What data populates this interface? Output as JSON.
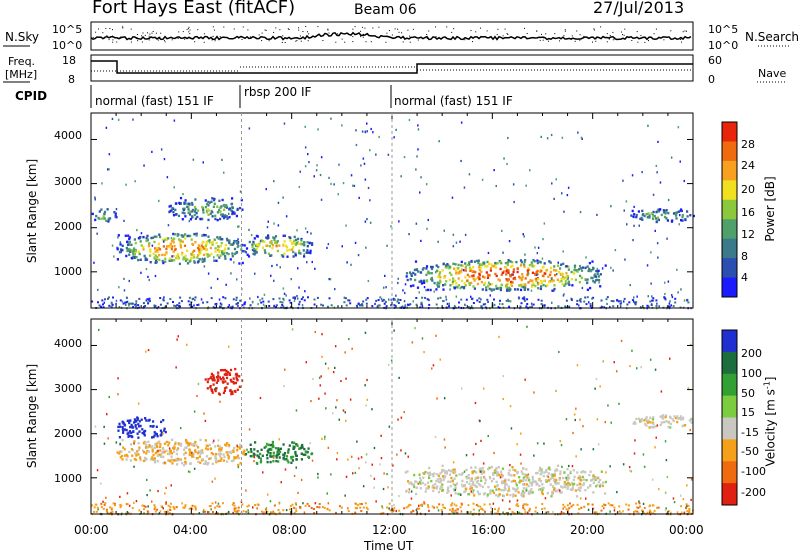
{
  "header": {
    "title": "Fort Hays East (fitACF)",
    "beam": "Beam 06",
    "date": "27/Jul/2013"
  },
  "top_panels": {
    "nsky_label": "N.Sky",
    "nsearch_label": "N.Search",
    "nsky_ticks": [
      "10^5",
      "10^0"
    ],
    "nsearch_ticks": [
      "10^5",
      "10^0"
    ],
    "freq_label_line1": "Freq.",
    "freq_label_line2": "[MHz]",
    "freq_ticks": [
      "18",
      "8"
    ],
    "nave_label": "Nave",
    "nave_ticks": [
      "60",
      "0"
    ],
    "cpid_label": "CPID",
    "cpid_segments": [
      {
        "label": "normal (fast) 151 IF",
        "start_h": 0,
        "end_h": 6
      },
      {
        "label": "rbsp 200 IF",
        "start_h": 6,
        "end_h": 12
      },
      {
        "label": "normal (fast) 151 IF",
        "start_h": 12,
        "end_h": 24
      }
    ]
  },
  "chart_data": [
    {
      "type": "heatmap",
      "name": "power",
      "ylabel": "Slant Range [km]",
      "yticks": [
        "1000",
        "2000",
        "3000",
        "4000"
      ],
      "ylim": [
        180,
        4600
      ],
      "xlim": [
        0,
        24
      ],
      "colorbar_label": "Power [dB]",
      "colorbar_ticks": [
        "28",
        "24",
        "20",
        "16",
        "12",
        "8",
        "4"
      ],
      "colors": [
        "#1b1bff",
        "#2b4fb0",
        "#3a7a8a",
        "#4fa06a",
        "#8cc83c",
        "#f0e020",
        "#f8a020",
        "#f06a10",
        "#e8240a"
      ],
      "regions": [
        {
          "x": [
            1.0,
            6.2
          ],
          "y": [
            1200,
            1900
          ],
          "level": 0.65
        },
        {
          "x": [
            6.1,
            8.8
          ],
          "y": [
            1350,
            1850
          ],
          "level": 0.6
        },
        {
          "x": [
            0.0,
            1.0
          ],
          "y": [
            2150,
            2450
          ],
          "level": 0.4
        },
        {
          "x": [
            3.0,
            6.0
          ],
          "y": [
            2200,
            2700
          ],
          "level": 0.35
        },
        {
          "x": [
            12.5,
            20.5
          ],
          "y": [
            600,
            1300
          ],
          "level": 0.75
        },
        {
          "x": [
            21.5,
            24.0
          ],
          "y": [
            2150,
            2450
          ],
          "level": 0.35
        }
      ]
    },
    {
      "type": "heatmap",
      "name": "velocity",
      "ylabel": "Slant Range [km]",
      "yticks": [
        "1000",
        "2000",
        "3000",
        "4000"
      ],
      "ylim": [
        180,
        4600
      ],
      "xlim": [
        0,
        24
      ],
      "xlabel": "Time UT",
      "xticks": [
        "00:00",
        "04:00",
        "08:00",
        "12:00",
        "16:00",
        "20:00",
        "00:00"
      ],
      "colorbar_label": "Velocity [m s",
      "colorbar_sup": "-1",
      "colorbar_close": "]",
      "colorbar_ticks": [
        "200",
        "100",
        "50",
        "15",
        "-15",
        "-50",
        "-100",
        "-200"
      ],
      "colors": [
        "#2030d0",
        "#1c6e3c",
        "#33a033",
        "#7ccc40",
        "#c8c8c0",
        "#f4a018",
        "#f06a10",
        "#e02010"
      ],
      "regions": [
        {
          "x": [
            1.0,
            6.2
          ],
          "y": [
            1300,
            1900
          ],
          "v": -15
        },
        {
          "x": [
            6.1,
            8.8
          ],
          "y": [
            1350,
            1850
          ],
          "v": 80
        },
        {
          "x": [
            1.0,
            3.0
          ],
          "y": [
            1900,
            2400
          ],
          "v": 200
        },
        {
          "x": [
            12.5,
            20.5
          ],
          "y": [
            600,
            1300
          ],
          "v": 0
        },
        {
          "x": [
            21.5,
            24.0
          ],
          "y": [
            2150,
            2450
          ],
          "v": 0
        },
        {
          "x": [
            4.5,
            6.0
          ],
          "y": [
            2900,
            3500
          ],
          "v": -200
        }
      ]
    }
  ]
}
